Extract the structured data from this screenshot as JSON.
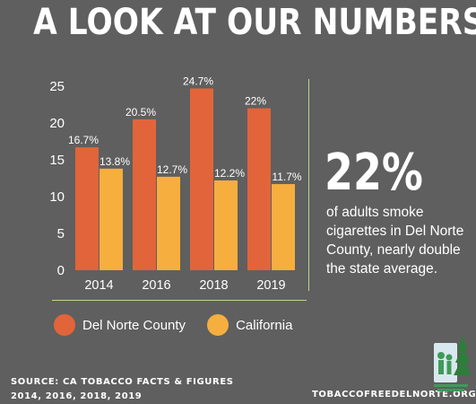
{
  "headline": "A LOOK AT OUR NUMBERS",
  "colors": {
    "del_norte": "#e2643a",
    "california": "#f6ae3e",
    "background": "#5f5f5f",
    "accent_line": "#b7d98c"
  },
  "chart_data": {
    "type": "bar",
    "categories": [
      "2014",
      "2016",
      "2018",
      "2019"
    ],
    "series": [
      {
        "name": "Del Norte County",
        "values": [
          16.7,
          20.5,
          24.7,
          22
        ],
        "labels": [
          "16.7%",
          "20.5%",
          "24.7%",
          "22%"
        ]
      },
      {
        "name": "California",
        "values": [
          13.8,
          12.7,
          12.2,
          11.7
        ],
        "labels": [
          "13.8%",
          "12.7%",
          "12.2%",
          "11.7%"
        ]
      }
    ],
    "yticks": [
      "0",
      "5",
      "10",
      "15",
      "20",
      "25"
    ],
    "ylim": [
      0,
      25
    ],
    "legend": "bottom"
  },
  "stat": {
    "big": "22%",
    "text": "of adults smoke cigarettes in Del Norte County, nearly double the state average."
  },
  "legend": {
    "item1": "Del Norte County",
    "item2": "California"
  },
  "footer": {
    "source_line1": "SOURCE: CA TOBACCO FACTS & FIGURES",
    "source_line2": "2014, 2016, 2018, 2019",
    "site": "TOBACCOFREEDELNORTE.ORG"
  },
  "logo_icon": "people-tree-logo-icon"
}
